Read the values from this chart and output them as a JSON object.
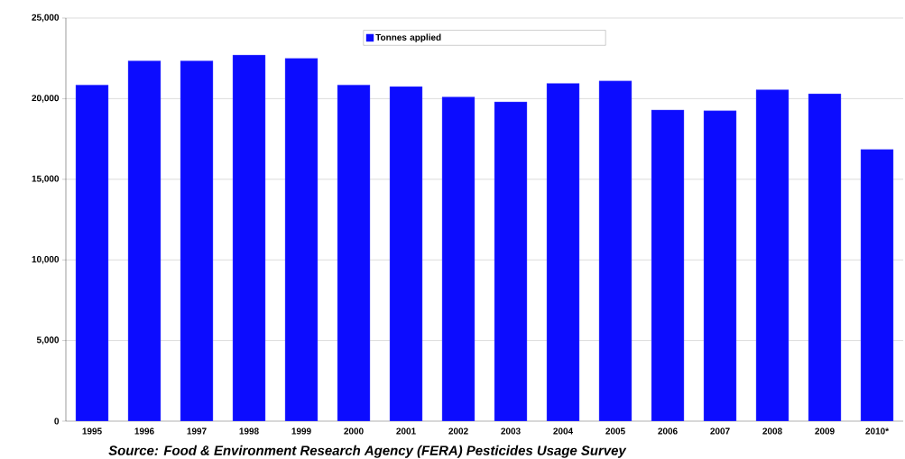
{
  "chart_data": {
    "type": "bar",
    "categories": [
      "1995",
      "1996",
      "1997",
      "1998",
      "1999",
      "2000",
      "2001",
      "2002",
      "2003",
      "2004",
      "2005",
      "2006",
      "2007",
      "2008",
      "2009",
      "2010*"
    ],
    "series": [
      {
        "name": "Tonnes applied",
        "color": "#0c0cff",
        "values": [
          20850,
          22350,
          22350,
          22700,
          22500,
          20850,
          20750,
          20100,
          19800,
          20950,
          21100,
          19300,
          19250,
          20550,
          20300,
          16850
        ]
      }
    ],
    "ylim": [
      0,
      25000
    ],
    "yticks": [
      {
        "value": 0,
        "label": "0"
      },
      {
        "value": 5000,
        "label": "5,000"
      },
      {
        "value": 10000,
        "label": "10,000"
      },
      {
        "value": 15000,
        "label": "15,000"
      },
      {
        "value": 20000,
        "label": "20,000"
      },
      {
        "value": 25000,
        "label": "25,000"
      }
    ],
    "grid": "y",
    "legend": "top",
    "annotations": [
      "Source: Food & Environment Research Agency (FERA) Pesticides Usage Survey"
    ]
  }
}
